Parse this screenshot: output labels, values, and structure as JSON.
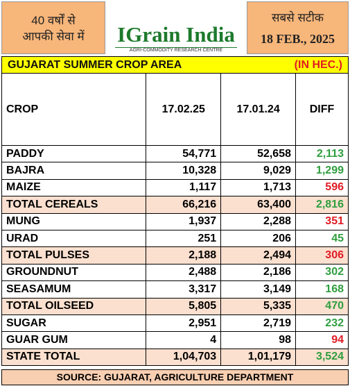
{
  "header": {
    "left_lines": [
      "40 वर्षों से",
      "आपकी सेवा में"
    ],
    "logo": "IGrain India",
    "logo_subtitle": "AGRI-COMMODITY RESEARCH CENTRE",
    "right_lines": [
      "सबसे सटीक",
      "18 FEB., 2025"
    ]
  },
  "banner": {
    "title": "GUJARAT SUMMER CROP AREA",
    "unit": "(IN HEC.)"
  },
  "table": {
    "columns": [
      "CROP",
      "17.02.25",
      "17.01.24",
      "DIFF"
    ],
    "rows": [
      {
        "cells": [
          "PADDY",
          "54,771",
          "52,658",
          "2,113"
        ],
        "diff_color": "#2e9e3e",
        "highlight": false
      },
      {
        "cells": [
          "BAJRA",
          "10,328",
          "9,029",
          "1,299"
        ],
        "diff_color": "#2e9e3e",
        "highlight": false
      },
      {
        "cells": [
          "MAIZE",
          "1,117",
          "1,713",
          "596"
        ],
        "diff_color": "#e01b24",
        "highlight": false
      },
      {
        "cells": [
          "TOTAL CEREALS",
          "66,216",
          "63,400",
          "2,816"
        ],
        "diff_color": "#2e9e3e",
        "highlight": true
      },
      {
        "cells": [
          "MUNG",
          "1,937",
          "2,288",
          "351"
        ],
        "diff_color": "#e01b24",
        "highlight": false
      },
      {
        "cells": [
          "URAD",
          "251",
          "206",
          "45"
        ],
        "diff_color": "#2e9e3e",
        "highlight": false
      },
      {
        "cells": [
          "TOTAL PULSES",
          "2,188",
          "2,494",
          "306"
        ],
        "diff_color": "#e01b24",
        "highlight": true
      },
      {
        "cells": [
          "GROUNDNUT",
          "2,488",
          "2,186",
          "302"
        ],
        "diff_color": "#2e9e3e",
        "highlight": false
      },
      {
        "cells": [
          "SEASAMUM",
          "3,317",
          "3,149",
          "168"
        ],
        "diff_color": "#2e9e3e",
        "highlight": false
      },
      {
        "cells": [
          "TOTAL OILSEED",
          "5,805",
          "5,335",
          "470"
        ],
        "diff_color": "#2e9e3e",
        "highlight": true
      },
      {
        "cells": [
          "SUGAR",
          "2,951",
          "2,719",
          "232"
        ],
        "diff_color": "#2e9e3e",
        "highlight": false
      },
      {
        "cells": [
          "GUAR GUM",
          "4",
          "98",
          "94"
        ],
        "diff_color": "#e01b24",
        "highlight": false
      },
      {
        "cells": [
          "STATE TOTAL",
          "1,04,703",
          "1,01,179",
          "3,524"
        ],
        "diff_color": "#2e9e3e",
        "highlight": true
      }
    ]
  },
  "footer": {
    "source": "SOURCE: GUJARAT, AGRICULTURE DEPARTMENT"
  }
}
